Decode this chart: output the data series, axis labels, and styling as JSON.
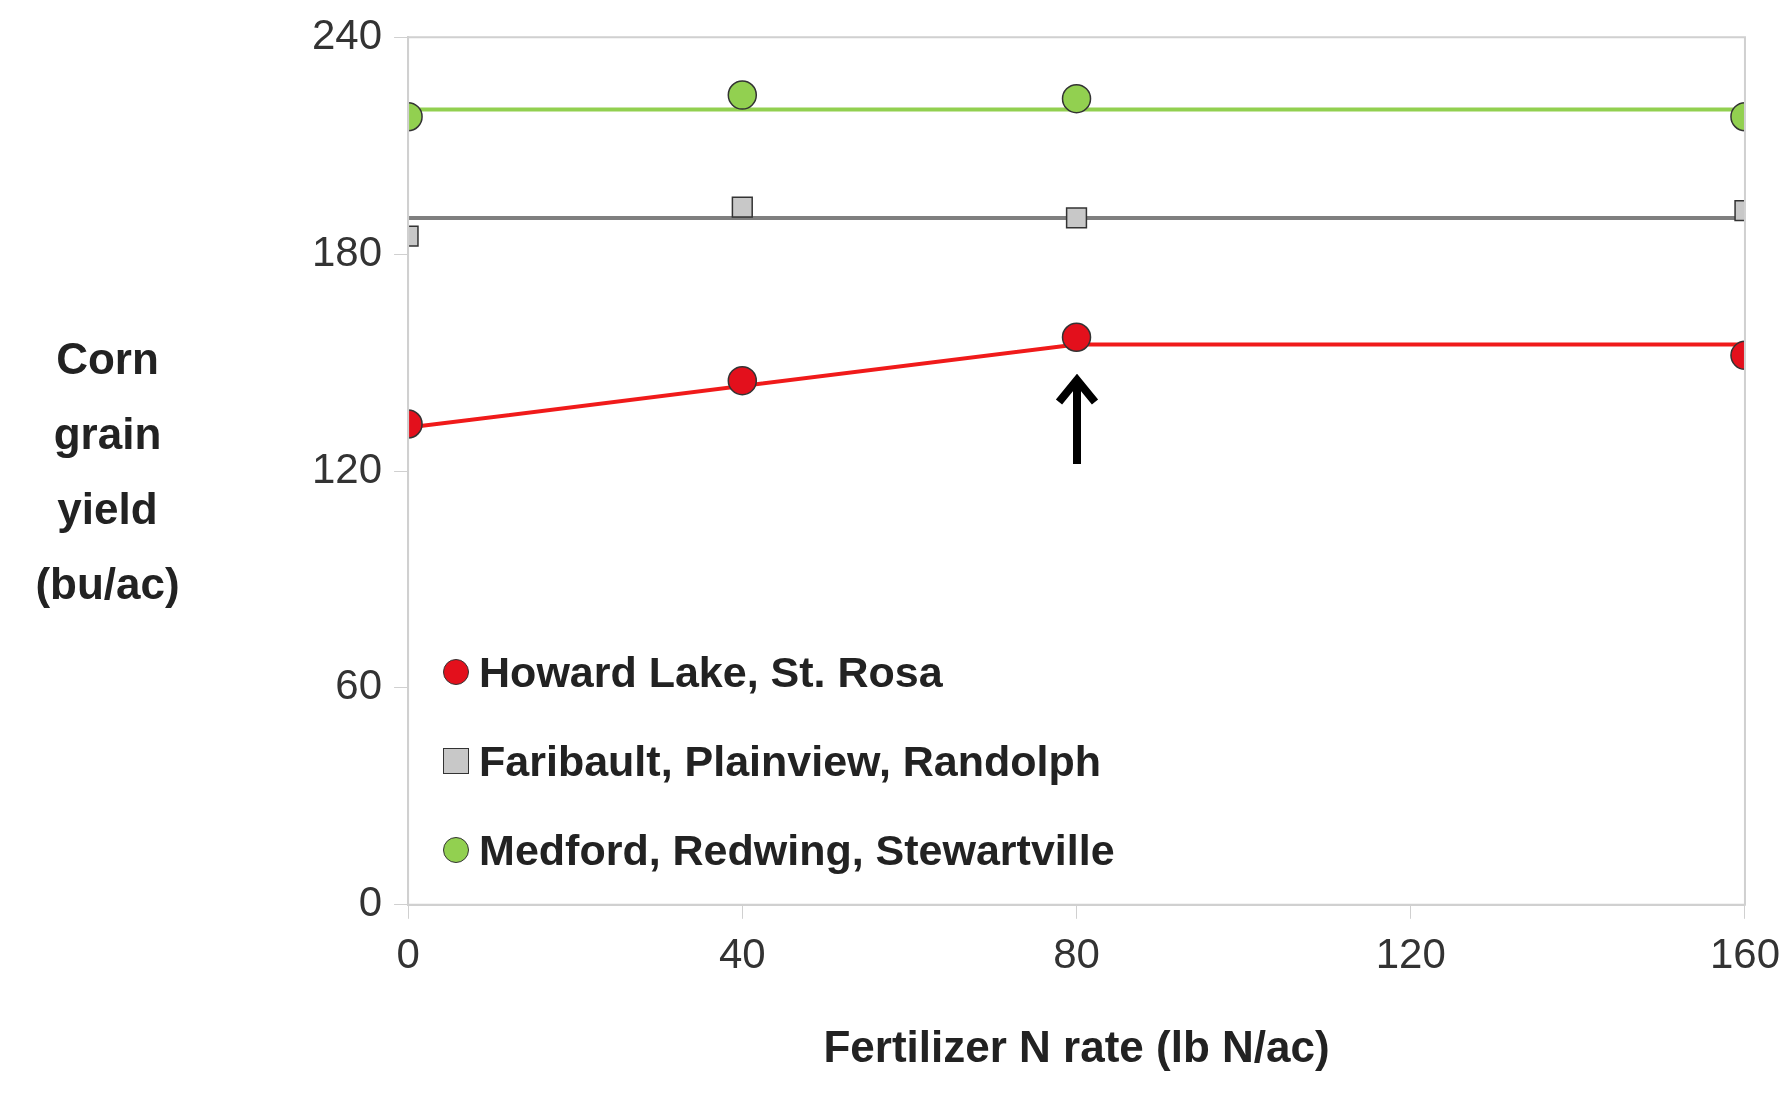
{
  "chart_data": {
    "type": "scatter",
    "xlabel": "Fertilizer N rate (lb N/ac)",
    "ylabel": "Corn grain yield (bu/ac)",
    "xlim": [
      0,
      160
    ],
    "xticks": [
      0,
      40,
      80,
      120,
      160
    ],
    "ylim": [
      0,
      240
    ],
    "yticks": [
      0,
      60,
      120,
      180,
      240
    ],
    "grid": false,
    "legend": "bottom left",
    "series": [
      {
        "name": "Howard Lake, St. Rosa",
        "marker": "circle",
        "color": "#e3101c",
        "x": [
          0,
          40,
          80,
          160
        ],
        "values": [
          133,
          145,
          157,
          152
        ]
      },
      {
        "name": "Faribault, Plainview, Randolph",
        "marker": "square",
        "color": "#c8c8c8",
        "x": [
          0,
          40,
          80,
          160
        ],
        "values": [
          185,
          193,
          190,
          192
        ]
      },
      {
        "name": "Medford, Redwing, Stewartville",
        "marker": "circle",
        "color": "#92d050",
        "x": [
          0,
          40,
          80,
          160
        ],
        "values": [
          218,
          224,
          223,
          218
        ]
      },
      {
        "type": "line",
        "marker": "none",
        "color": "#f01a1a",
        "x": [
          0,
          80,
          160
        ],
        "values": [
          132,
          155,
          155
        ]
      },
      {
        "type": "line",
        "marker": "none",
        "color": "#7f7f7f",
        "x": [
          0,
          160
        ],
        "values": [
          190,
          190
        ]
      },
      {
        "type": "line",
        "marker": "none",
        "color": "#92d050",
        "x": [
          0,
          160
        ],
        "values": [
          220,
          220
        ]
      }
    ]
  }
}
